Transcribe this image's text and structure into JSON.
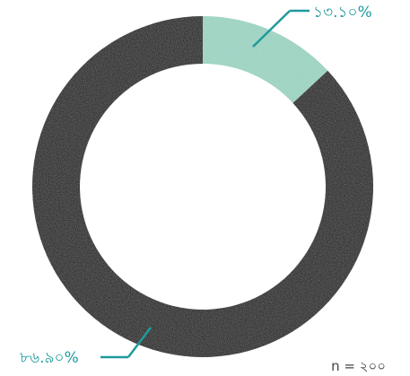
{
  "chart_data": {
    "type": "pie",
    "variant": "donut",
    "slices": [
      {
        "label": "১৩.১০%",
        "value": 13.1,
        "color": "#9fd8c6"
      },
      {
        "label": "৮৬.৯০%",
        "value": 86.9,
        "color": "#151515"
      }
    ],
    "start": "12 o'clock",
    "direction": "clockwise",
    "annotation": "n = ২০০",
    "callout_color": "#1f9a9c"
  }
}
